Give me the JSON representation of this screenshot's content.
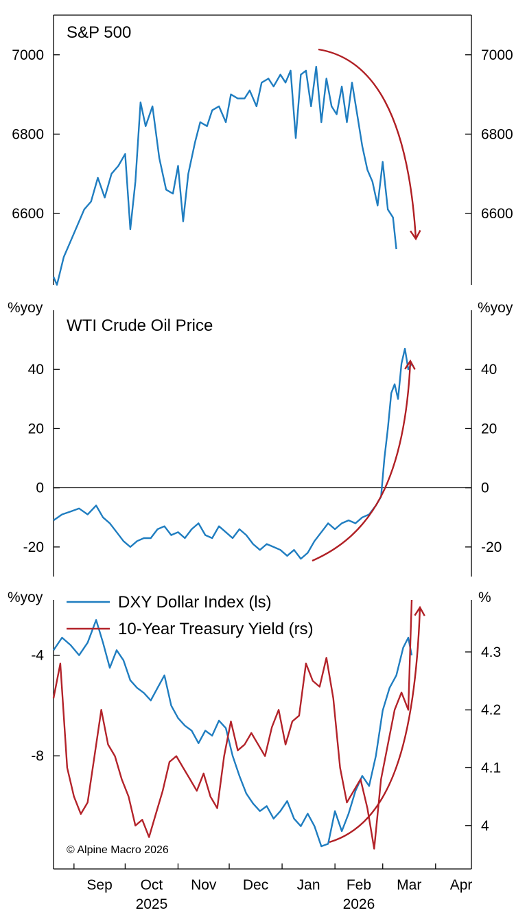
{
  "colors": {
    "blue": "#1F7DC0",
    "red": "#B3232A",
    "arrow": "#B01F24",
    "axis": "#000000"
  },
  "copyright": "© Alpine Macro 2026",
  "x_axis": {
    "months": [
      "Sep",
      "Oct",
      "Nov",
      "Dec",
      "Jan",
      "Feb",
      "Mar",
      "Apr"
    ],
    "years": [
      "2025",
      "2026"
    ]
  },
  "chart_data": [
    {
      "type": "line",
      "title": "S&P 500",
      "y_unit_left": "",
      "y_unit_right": "",
      "yticks": [
        6600,
        6800,
        7000
      ],
      "ylim": [
        6420,
        7100
      ],
      "xlim": [
        "2025-08-20",
        "2026-04-22"
      ],
      "series": [
        {
          "color": "blue",
          "x": [
            "2025-08-20",
            "2025-08-22",
            "2025-08-26",
            "2025-08-29",
            "2025-09-03",
            "2025-09-07",
            "2025-09-11",
            "2025-09-15",
            "2025-09-19",
            "2025-09-23",
            "2025-09-27",
            "2025-10-01",
            "2025-10-04",
            "2025-10-07",
            "2025-10-10",
            "2025-10-13",
            "2025-10-17",
            "2025-10-21",
            "2025-10-25",
            "2025-10-29",
            "2025-11-01",
            "2025-11-04",
            "2025-11-07",
            "2025-11-11",
            "2025-11-14",
            "2025-11-18",
            "2025-11-21",
            "2025-11-25",
            "2025-11-29",
            "2025-12-02",
            "2025-12-06",
            "2025-12-10",
            "2025-12-13",
            "2025-12-17",
            "2025-12-20",
            "2025-12-24",
            "2025-12-27",
            "2025-12-31",
            "2026-01-03",
            "2026-01-06",
            "2026-01-09",
            "2026-01-12",
            "2026-01-15",
            "2026-01-18",
            "2026-01-21",
            "2026-01-24",
            "2026-01-27",
            "2026-01-30",
            "2026-02-02",
            "2026-02-05",
            "2026-02-08",
            "2026-02-11",
            "2026-02-14",
            "2026-02-17",
            "2026-02-20",
            "2026-02-23",
            "2026-02-26",
            "2026-03-01",
            "2026-03-04",
            "2026-03-07",
            "2026-03-09"
          ],
          "y": [
            6440,
            6420,
            6490,
            6520,
            6570,
            6610,
            6630,
            6690,
            6640,
            6700,
            6720,
            6750,
            6560,
            6680,
            6880,
            6820,
            6870,
            6740,
            6660,
            6650,
            6720,
            6580,
            6700,
            6780,
            6830,
            6820,
            6860,
            6870,
            6830,
            6900,
            6890,
            6890,
            6910,
            6870,
            6930,
            6940,
            6920,
            6950,
            6930,
            6960,
            6790,
            6950,
            6960,
            6870,
            6970,
            6830,
            6940,
            6870,
            6850,
            6920,
            6830,
            6930,
            6850,
            6770,
            6710,
            6680,
            6620,
            6730,
            6610,
            6590,
            6510
          ]
        }
      ],
      "annotations": [
        {
          "type": "arrow",
          "direction": "down",
          "color": "arrow"
        }
      ]
    },
    {
      "type": "line",
      "title": "WTI Crude Oil Price",
      "y_unit_left": "%yoy",
      "y_unit_right": "%yoy",
      "yticks": [
        -20,
        0,
        20,
        40
      ],
      "ylim": [
        -30,
        60
      ],
      "xlim": [
        "2025-08-20",
        "2026-04-22"
      ],
      "series": [
        {
          "color": "blue",
          "x": [
            "2025-08-20",
            "2025-08-25",
            "2025-08-30",
            "2025-09-04",
            "2025-09-09",
            "2025-09-14",
            "2025-09-18",
            "2025-09-22",
            "2025-09-26",
            "2025-09-30",
            "2025-10-04",
            "2025-10-08",
            "2025-10-12",
            "2025-10-16",
            "2025-10-20",
            "2025-10-24",
            "2025-10-28",
            "2025-11-01",
            "2025-11-05",
            "2025-11-09",
            "2025-11-13",
            "2025-11-17",
            "2025-11-21",
            "2025-11-25",
            "2025-11-29",
            "2025-12-03",
            "2025-12-07",
            "2025-12-11",
            "2025-12-15",
            "2025-12-19",
            "2025-12-23",
            "2025-12-27",
            "2025-12-31",
            "2026-01-04",
            "2026-01-08",
            "2026-01-12",
            "2026-01-16",
            "2026-01-20",
            "2026-01-24",
            "2026-01-28",
            "2026-02-01",
            "2026-02-05",
            "2026-02-09",
            "2026-02-13",
            "2026-02-17",
            "2026-02-21",
            "2026-02-25",
            "2026-02-28",
            "2026-03-02",
            "2026-03-04",
            "2026-03-06",
            "2026-03-08",
            "2026-03-10",
            "2026-03-12",
            "2026-03-14",
            "2026-03-16",
            "2026-03-18"
          ],
          "y": [
            -11,
            -9,
            -8,
            -7,
            -9,
            -6,
            -10,
            -12,
            -15,
            -18,
            -20,
            -18,
            -17,
            -17,
            -14,
            -13,
            -16,
            -15,
            -17,
            -14,
            -12,
            -16,
            -17,
            -13,
            -15,
            -17,
            -14,
            -16,
            -19,
            -21,
            -19,
            -20,
            -21,
            -23,
            -21,
            -24,
            -22,
            -18,
            -15,
            -12,
            -14,
            -12,
            -11,
            -12,
            -10,
            -9,
            -6,
            -3,
            10,
            20,
            32,
            35,
            30,
            42,
            47,
            40,
            42
          ]
        }
      ],
      "annotations": [
        {
          "type": "arrow",
          "direction": "up",
          "color": "arrow"
        }
      ]
    },
    {
      "type": "line",
      "title": "",
      "y_unit_left": "%yoy",
      "y_unit_right": "%",
      "yticks": [
        -4,
        -8
      ],
      "ylim": [
        -12.5,
        -1.8
      ],
      "yticks_right": [
        4.0,
        4.1,
        4.2,
        4.3
      ],
      "ylim_right": [
        3.925,
        4.39
      ],
      "xlim": [
        "2025-08-20",
        "2026-04-22"
      ],
      "legend_position": "top-left",
      "series": [
        {
          "name": "DXY Dollar Index (ls)",
          "color": "blue",
          "axis": "left",
          "x": [
            "2025-08-20",
            "2025-08-25",
            "2025-08-30",
            "2025-09-04",
            "2025-09-09",
            "2025-09-14",
            "2025-09-18",
            "2025-09-22",
            "2025-09-26",
            "2025-09-30",
            "2025-10-04",
            "2025-10-08",
            "2025-10-12",
            "2025-10-16",
            "2025-10-20",
            "2025-10-24",
            "2025-10-28",
            "2025-11-01",
            "2025-11-05",
            "2025-11-09",
            "2025-11-13",
            "2025-11-17",
            "2025-11-21",
            "2025-11-25",
            "2025-11-29",
            "2025-12-03",
            "2025-12-07",
            "2025-12-11",
            "2025-12-15",
            "2025-12-19",
            "2025-12-23",
            "2025-12-27",
            "2025-12-31",
            "2026-01-04",
            "2026-01-08",
            "2026-01-12",
            "2026-01-16",
            "2026-01-20",
            "2026-01-24",
            "2026-01-28",
            "2026-02-01",
            "2026-02-05",
            "2026-02-09",
            "2026-02-13",
            "2026-02-17",
            "2026-02-21",
            "2026-02-25",
            "2026-03-01",
            "2026-03-05",
            "2026-03-09",
            "2026-03-13",
            "2026-03-16",
            "2026-03-18"
          ],
          "y": [
            -3.8,
            -3.3,
            -3.6,
            -4.0,
            -3.5,
            -2.6,
            -3.5,
            -4.5,
            -3.8,
            -4.2,
            -5.0,
            -5.3,
            -5.5,
            -5.8,
            -5.3,
            -4.8,
            -6.0,
            -6.5,
            -6.8,
            -7.0,
            -7.5,
            -7.0,
            -7.2,
            -6.6,
            -6.9,
            -8.0,
            -8.8,
            -9.5,
            -9.9,
            -10.2,
            -10.0,
            -10.5,
            -10.2,
            -9.8,
            -10.5,
            -10.8,
            -10.3,
            -10.8,
            -11.6,
            -11.5,
            -10.2,
            -11.0,
            -10.3,
            -9.4,
            -8.8,
            -9.2,
            -8.0,
            -6.2,
            -5.3,
            -4.8,
            -3.7,
            -3.3,
            -4.0
          ]
        },
        {
          "name": "10-Year Treasury Yield (rs)",
          "color": "red",
          "axis": "right",
          "x": [
            "2025-08-20",
            "2025-08-24",
            "2025-08-28",
            "2025-09-01",
            "2025-09-05",
            "2025-09-09",
            "2025-09-13",
            "2025-09-17",
            "2025-09-21",
            "2025-09-25",
            "2025-09-29",
            "2025-10-03",
            "2025-10-07",
            "2025-10-11",
            "2025-10-15",
            "2025-10-19",
            "2025-10-23",
            "2025-10-27",
            "2025-10-31",
            "2025-11-04",
            "2025-11-08",
            "2025-11-12",
            "2025-11-16",
            "2025-11-20",
            "2025-11-24",
            "2025-11-28",
            "2025-12-02",
            "2025-12-06",
            "2025-12-10",
            "2025-12-14",
            "2025-12-18",
            "2025-12-22",
            "2025-12-26",
            "2025-12-30",
            "2026-01-03",
            "2026-01-07",
            "2026-01-11",
            "2026-01-15",
            "2026-01-19",
            "2026-01-23",
            "2026-01-27",
            "2026-01-31",
            "2026-02-04",
            "2026-02-08",
            "2026-02-12",
            "2026-02-16",
            "2026-02-20",
            "2026-02-24",
            "2026-02-28",
            "2026-03-04",
            "2026-03-08",
            "2026-03-12",
            "2026-03-16",
            "2026-03-18"
          ],
          "y": [
            4.22,
            4.28,
            4.1,
            4.05,
            4.02,
            4.04,
            4.12,
            4.2,
            4.14,
            4.12,
            4.08,
            4.05,
            4.0,
            4.01,
            3.98,
            4.02,
            4.06,
            4.11,
            4.12,
            4.1,
            4.08,
            4.06,
            4.09,
            4.05,
            4.03,
            4.12,
            4.18,
            4.13,
            4.14,
            4.16,
            4.14,
            4.12,
            4.17,
            4.2,
            4.14,
            4.18,
            4.19,
            4.28,
            4.25,
            4.24,
            4.29,
            4.22,
            4.1,
            4.04,
            4.06,
            4.08,
            4.03,
            3.96,
            4.08,
            4.14,
            4.2,
            4.23,
            4.2,
            4.39
          ]
        }
      ],
      "annotations": [
        {
          "type": "arrow",
          "direction": "up",
          "color": "arrow"
        }
      ]
    }
  ]
}
